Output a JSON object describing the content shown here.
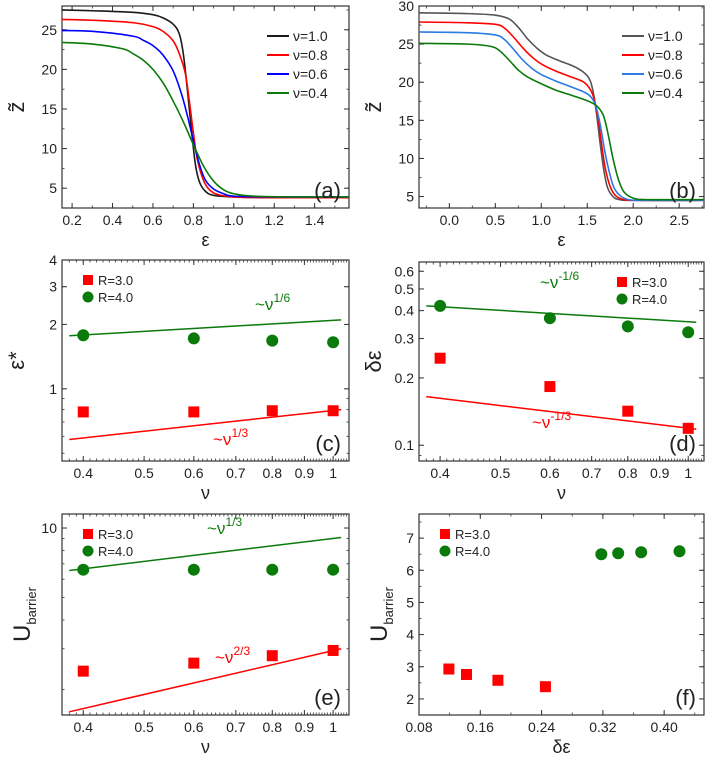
{
  "colors": {
    "black": "#1a1a1a",
    "grey": "#555555",
    "red": "#ff0000",
    "blue": "#0000ff",
    "blue2": "#2a7be4",
    "green": "#0a7a0a",
    "red2": "#e85050"
  },
  "chart_data": [
    {
      "id": "a",
      "type": "line",
      "panel_label": "(a)",
      "xlabel": "ε",
      "ylabel": "z̃",
      "xlim": [
        0.15,
        1.57
      ],
      "ylim": [
        2.5,
        28
      ],
      "xticks": [
        0.2,
        0.4,
        0.6,
        0.8,
        1.0,
        1.2,
        1.4
      ],
      "xtick_labels": [
        "0.2",
        "0.4",
        "0.6",
        "0.8",
        "1.0",
        "1.2",
        "1.4"
      ],
      "yticks": [
        5,
        10,
        15,
        20,
        25
      ],
      "ytick_labels": [
        "5",
        "10",
        "15",
        "20",
        "25"
      ],
      "legend_position": "top-right",
      "series": [
        {
          "name": "ν=1.0",
          "color": "#1a1a1a",
          "x": [
            0.15,
            0.3,
            0.5,
            0.6,
            0.65,
            0.7,
            0.73,
            0.75,
            0.77,
            0.79,
            0.81,
            0.83,
            0.86,
            0.9,
            1.0,
            1.2,
            1.57
          ],
          "y": [
            27.5,
            27.4,
            27.2,
            26.9,
            26.5,
            25.7,
            24.5,
            22.0,
            17.5,
            12.5,
            8.0,
            5.8,
            4.6,
            4.1,
            3.9,
            3.8,
            3.8
          ]
        },
        {
          "name": "ν=0.8",
          "color": "#ff0000",
          "x": [
            0.15,
            0.3,
            0.5,
            0.6,
            0.65,
            0.7,
            0.73,
            0.76,
            0.78,
            0.8,
            0.82,
            0.85,
            0.88,
            0.92,
            1.0,
            1.2,
            1.57
          ],
          "y": [
            26.3,
            26.2,
            25.9,
            25.4,
            24.8,
            23.6,
            22.0,
            19.5,
            16.0,
            12.0,
            8.6,
            6.0,
            4.8,
            4.2,
            3.9,
            3.8,
            3.8
          ]
        },
        {
          "name": "ν=0.6",
          "color": "#0000ff",
          "x": [
            0.15,
            0.3,
            0.5,
            0.55,
            0.6,
            0.65,
            0.7,
            0.74,
            0.77,
            0.8,
            0.83,
            0.86,
            0.9,
            0.95,
            1.0,
            1.2,
            1.57
          ],
          "y": [
            24.9,
            24.8,
            24.2,
            23.7,
            23.0,
            21.8,
            19.8,
            17.0,
            14.2,
            11.0,
            8.0,
            6.0,
            4.9,
            4.3,
            4.0,
            3.9,
            3.9
          ]
        },
        {
          "name": "ν=0.4",
          "color": "#0a7a0a",
          "x": [
            0.15,
            0.3,
            0.45,
            0.5,
            0.55,
            0.6,
            0.65,
            0.7,
            0.75,
            0.8,
            0.85,
            0.9,
            0.95,
            1.0,
            1.1,
            1.3,
            1.57
          ],
          "y": [
            23.4,
            23.2,
            22.6,
            22.0,
            21.2,
            20.0,
            18.3,
            16.0,
            13.4,
            10.5,
            7.8,
            5.9,
            4.8,
            4.3,
            4.0,
            3.9,
            3.9
          ]
        }
      ]
    },
    {
      "id": "b",
      "type": "line",
      "panel_label": "(b)",
      "xlabel": "ε",
      "ylabel": "z̃",
      "xlim": [
        -0.33,
        2.77
      ],
      "ylim": [
        3.5,
        30
      ],
      "xticks": [
        0.0,
        0.5,
        1.0,
        1.5,
        2.0,
        2.5
      ],
      "xtick_labels": [
        "0.0",
        "0.5",
        "1.0",
        "1.5",
        "2.0",
        "2.5"
      ],
      "yticks": [
        5,
        10,
        15,
        20,
        25,
        30
      ],
      "ytick_labels": [
        "5",
        "10",
        "15",
        "20",
        "25",
        "30"
      ],
      "legend_position": "top-right",
      "series": [
        {
          "name": "ν=1.0",
          "color": "#555555",
          "x": [
            -0.33,
            0.2,
            0.5,
            0.65,
            0.75,
            0.85,
            0.95,
            1.05,
            1.2,
            1.35,
            1.45,
            1.52,
            1.56,
            1.6,
            1.64,
            1.68,
            1.72,
            1.78,
            1.85,
            2.0,
            2.77
          ],
          "y": [
            29.1,
            29.0,
            28.8,
            28.3,
            27.2,
            25.7,
            24.5,
            23.6,
            22.8,
            22.1,
            21.4,
            20.5,
            19.0,
            16.0,
            12.0,
            8.5,
            6.2,
            5.0,
            4.6,
            4.5,
            4.5
          ]
        },
        {
          "name": "ν=0.8",
          "color": "#ff0000",
          "x": [
            -0.33,
            0.2,
            0.5,
            0.6,
            0.7,
            0.8,
            0.9,
            1.0,
            1.15,
            1.3,
            1.45,
            1.52,
            1.57,
            1.62,
            1.66,
            1.7,
            1.75,
            1.81,
            1.9,
            2.05,
            2.77
          ],
          "y": [
            27.9,
            27.8,
            27.6,
            27.1,
            25.9,
            24.5,
            23.3,
            22.4,
            21.5,
            20.8,
            20.1,
            19.3,
            18.0,
            15.0,
            11.5,
            8.5,
            6.3,
            5.1,
            4.6,
            4.5,
            4.5
          ]
        },
        {
          "name": "ν=0.6",
          "color": "#2a7be4",
          "x": [
            -0.33,
            0.2,
            0.5,
            0.6,
            0.7,
            0.8,
            0.9,
            1.0,
            1.15,
            1.3,
            1.45,
            1.53,
            1.59,
            1.64,
            1.69,
            1.74,
            1.79,
            1.86,
            1.95,
            2.1,
            2.77
          ],
          "y": [
            26.6,
            26.5,
            26.2,
            25.6,
            24.3,
            22.9,
            21.8,
            21.0,
            20.2,
            19.5,
            18.8,
            18.2,
            17.0,
            14.5,
            11.0,
            8.2,
            6.2,
            5.1,
            4.6,
            4.5,
            4.5
          ]
        },
        {
          "name": "ν=0.4",
          "color": "#0a7a0a",
          "x": [
            -0.33,
            0.2,
            0.45,
            0.55,
            0.65,
            0.75,
            0.85,
            1.0,
            1.15,
            1.3,
            1.45,
            1.55,
            1.62,
            1.68,
            1.73,
            1.78,
            1.84,
            1.9,
            2.0,
            2.15,
            2.77
          ],
          "y": [
            25.1,
            25.0,
            24.7,
            24.1,
            22.9,
            21.6,
            20.7,
            19.8,
            19.0,
            18.4,
            17.8,
            17.3,
            16.7,
            15.5,
            13.0,
            10.0,
            7.2,
            5.6,
            4.8,
            4.6,
            4.6
          ]
        }
      ]
    },
    {
      "id": "c",
      "type": "scatter",
      "panel_label": "(c)",
      "xscale": "log",
      "yscale": "log",
      "xlabel": "ν",
      "ylabel": "ε*",
      "xlim": [
        0.37,
        1.06
      ],
      "ylim": [
        0.46,
        4.0
      ],
      "xticks": [
        0.4,
        0.5,
        0.6,
        0.7,
        0.8,
        0.9,
        1.0
      ],
      "xtick_labels": [
        "0.4",
        "0.5",
        "0.6",
        "0.7",
        "0.8",
        "0.9",
        "1"
      ],
      "yticks": [
        1,
        2,
        3,
        4
      ],
      "ytick_labels": [
        "1",
        "2",
        "3",
        "4"
      ],
      "legend_position": "top-left",
      "series": [
        {
          "name": "R=3.0",
          "marker": "square",
          "color": "#ff0000",
          "x": [
            0.4,
            0.6,
            0.8,
            1.0
          ],
          "y": [
            0.78,
            0.78,
            0.79,
            0.79
          ]
        },
        {
          "name": "R=4.0",
          "marker": "circle",
          "color": "#0a7a0a",
          "x": [
            0.4,
            0.6,
            0.8,
            1.0
          ],
          "y": [
            1.78,
            1.72,
            1.68,
            1.65
          ]
        }
      ],
      "fits": [
        {
          "label_base": "~ν",
          "label_exp": "1/3",
          "color": "#ff0000",
          "x": [
            0.38,
            1.03
          ],
          "y": [
            0.58,
            0.8
          ]
        },
        {
          "label_base": "~ν",
          "label_exp": "1/6",
          "color": "#0a7a0a",
          "x": [
            0.38,
            1.03
          ],
          "y": [
            1.77,
            2.1
          ]
        }
      ]
    },
    {
      "id": "d",
      "type": "scatter",
      "panel_label": "(d)",
      "xscale": "log",
      "yscale": "log",
      "xlabel": "ν",
      "ylabel": "δε",
      "xlim": [
        0.37,
        1.06
      ],
      "ylim": [
        0.085,
        0.66
      ],
      "xticks": [
        0.4,
        0.5,
        0.6,
        0.7,
        0.8,
        0.9,
        1.0
      ],
      "xtick_labels": [
        "0.4",
        "0.5",
        "0.6",
        "0.7",
        "0.8",
        "0.9",
        "1"
      ],
      "yticks": [
        0.1,
        0.2,
        0.3,
        0.4,
        0.5,
        0.6
      ],
      "ytick_labels": [
        "0.1",
        "0.2",
        "0.3",
        "0.4",
        "0.5",
        "0.6"
      ],
      "legend_position": "top-right",
      "series": [
        {
          "name": "R=3.0",
          "marker": "square",
          "color": "#ff0000",
          "x": [
            0.4,
            0.6,
            0.8,
            1.0
          ],
          "y": [
            0.245,
            0.183,
            0.142,
            0.119
          ]
        },
        {
          "name": "R=4.0",
          "marker": "circle",
          "color": "#0a7a0a",
          "x": [
            0.4,
            0.6,
            0.8,
            1.0
          ],
          "y": [
            0.42,
            0.37,
            0.34,
            0.32
          ]
        }
      ],
      "fits": [
        {
          "label_base": "~ν",
          "label_exp": "-1/3",
          "color": "#ff0000",
          "x": [
            0.38,
            1.03
          ],
          "y": [
            0.165,
            0.118
          ]
        },
        {
          "label_base": "~ν",
          "label_exp": "-1/6",
          "color": "#0a7a0a",
          "x": [
            0.38,
            1.03
          ],
          "y": [
            0.42,
            0.355
          ]
        }
      ]
    },
    {
      "id": "e",
      "type": "scatter",
      "panel_label": "(e)",
      "xscale": "log",
      "yscale": "log",
      "xlabel": "ν",
      "ylabel": "U_barrier",
      "ylabel_base": "U",
      "ylabel_sub": "barrier",
      "xlim": [
        0.37,
        1.06
      ],
      "ylim": [
        1.55,
        11.5
      ],
      "xticks": [
        0.4,
        0.5,
        0.6,
        0.7,
        0.8,
        0.9,
        1.0
      ],
      "xtick_labels": [
        "0.4",
        "0.5",
        "0.6",
        "0.7",
        "0.8",
        "0.9",
        "1"
      ],
      "yticks": [
        10
      ],
      "ytick_labels": [
        "10"
      ],
      "legend_position": "top-left",
      "series": [
        {
          "name": "R=3.0",
          "marker": "square",
          "color": "#ff0000",
          "x": [
            0.4,
            0.6,
            0.8,
            1.0
          ],
          "y": [
            2.4,
            2.6,
            2.8,
            2.95
          ]
        },
        {
          "name": "R=4.0",
          "marker": "circle",
          "color": "#0a7a0a",
          "x": [
            0.4,
            0.6,
            0.8,
            1.0
          ],
          "y": [
            6.6,
            6.6,
            6.6,
            6.6
          ]
        }
      ],
      "fits": [
        {
          "label_base": "~ν",
          "label_exp": "2/3",
          "color": "#ff0000",
          "x": [
            0.38,
            1.03
          ],
          "y": [
            1.6,
            3.0
          ]
        },
        {
          "label_base": "~ν",
          "label_exp": "1/3",
          "color": "#0a7a0a",
          "x": [
            0.38,
            1.03
          ],
          "y": [
            6.55,
            9.1
          ]
        }
      ]
    },
    {
      "id": "f",
      "type": "scatter",
      "panel_label": "(f)",
      "xlabel": "δε",
      "ylabel": "U_barrier",
      "ylabel_base": "U",
      "ylabel_sub": "barrier",
      "xlim": [
        0.08,
        0.452
      ],
      "ylim": [
        1.5,
        7.75
      ],
      "xticks": [
        0.08,
        0.16,
        0.24,
        0.32,
        0.4
      ],
      "xtick_labels": [
        "0.08",
        "0.16",
        "0.24",
        "0.32",
        "0.40"
      ],
      "yticks": [
        2,
        3,
        4,
        5,
        6,
        7
      ],
      "ytick_labels": [
        "2",
        "3",
        "4",
        "5",
        "6",
        "7"
      ],
      "legend_position": "top-left",
      "series": [
        {
          "name": "R=3.0",
          "marker": "square",
          "color": "#ff0000",
          "x": [
            0.119,
            0.142,
            0.183,
            0.245
          ],
          "y": [
            2.93,
            2.76,
            2.58,
            2.38
          ]
        },
        {
          "name": "R=4.0",
          "marker": "circle",
          "color": "#0a7a0a",
          "x": [
            0.318,
            0.34,
            0.37,
            0.42
          ],
          "y": [
            6.5,
            6.53,
            6.56,
            6.59
          ]
        }
      ]
    }
  ]
}
